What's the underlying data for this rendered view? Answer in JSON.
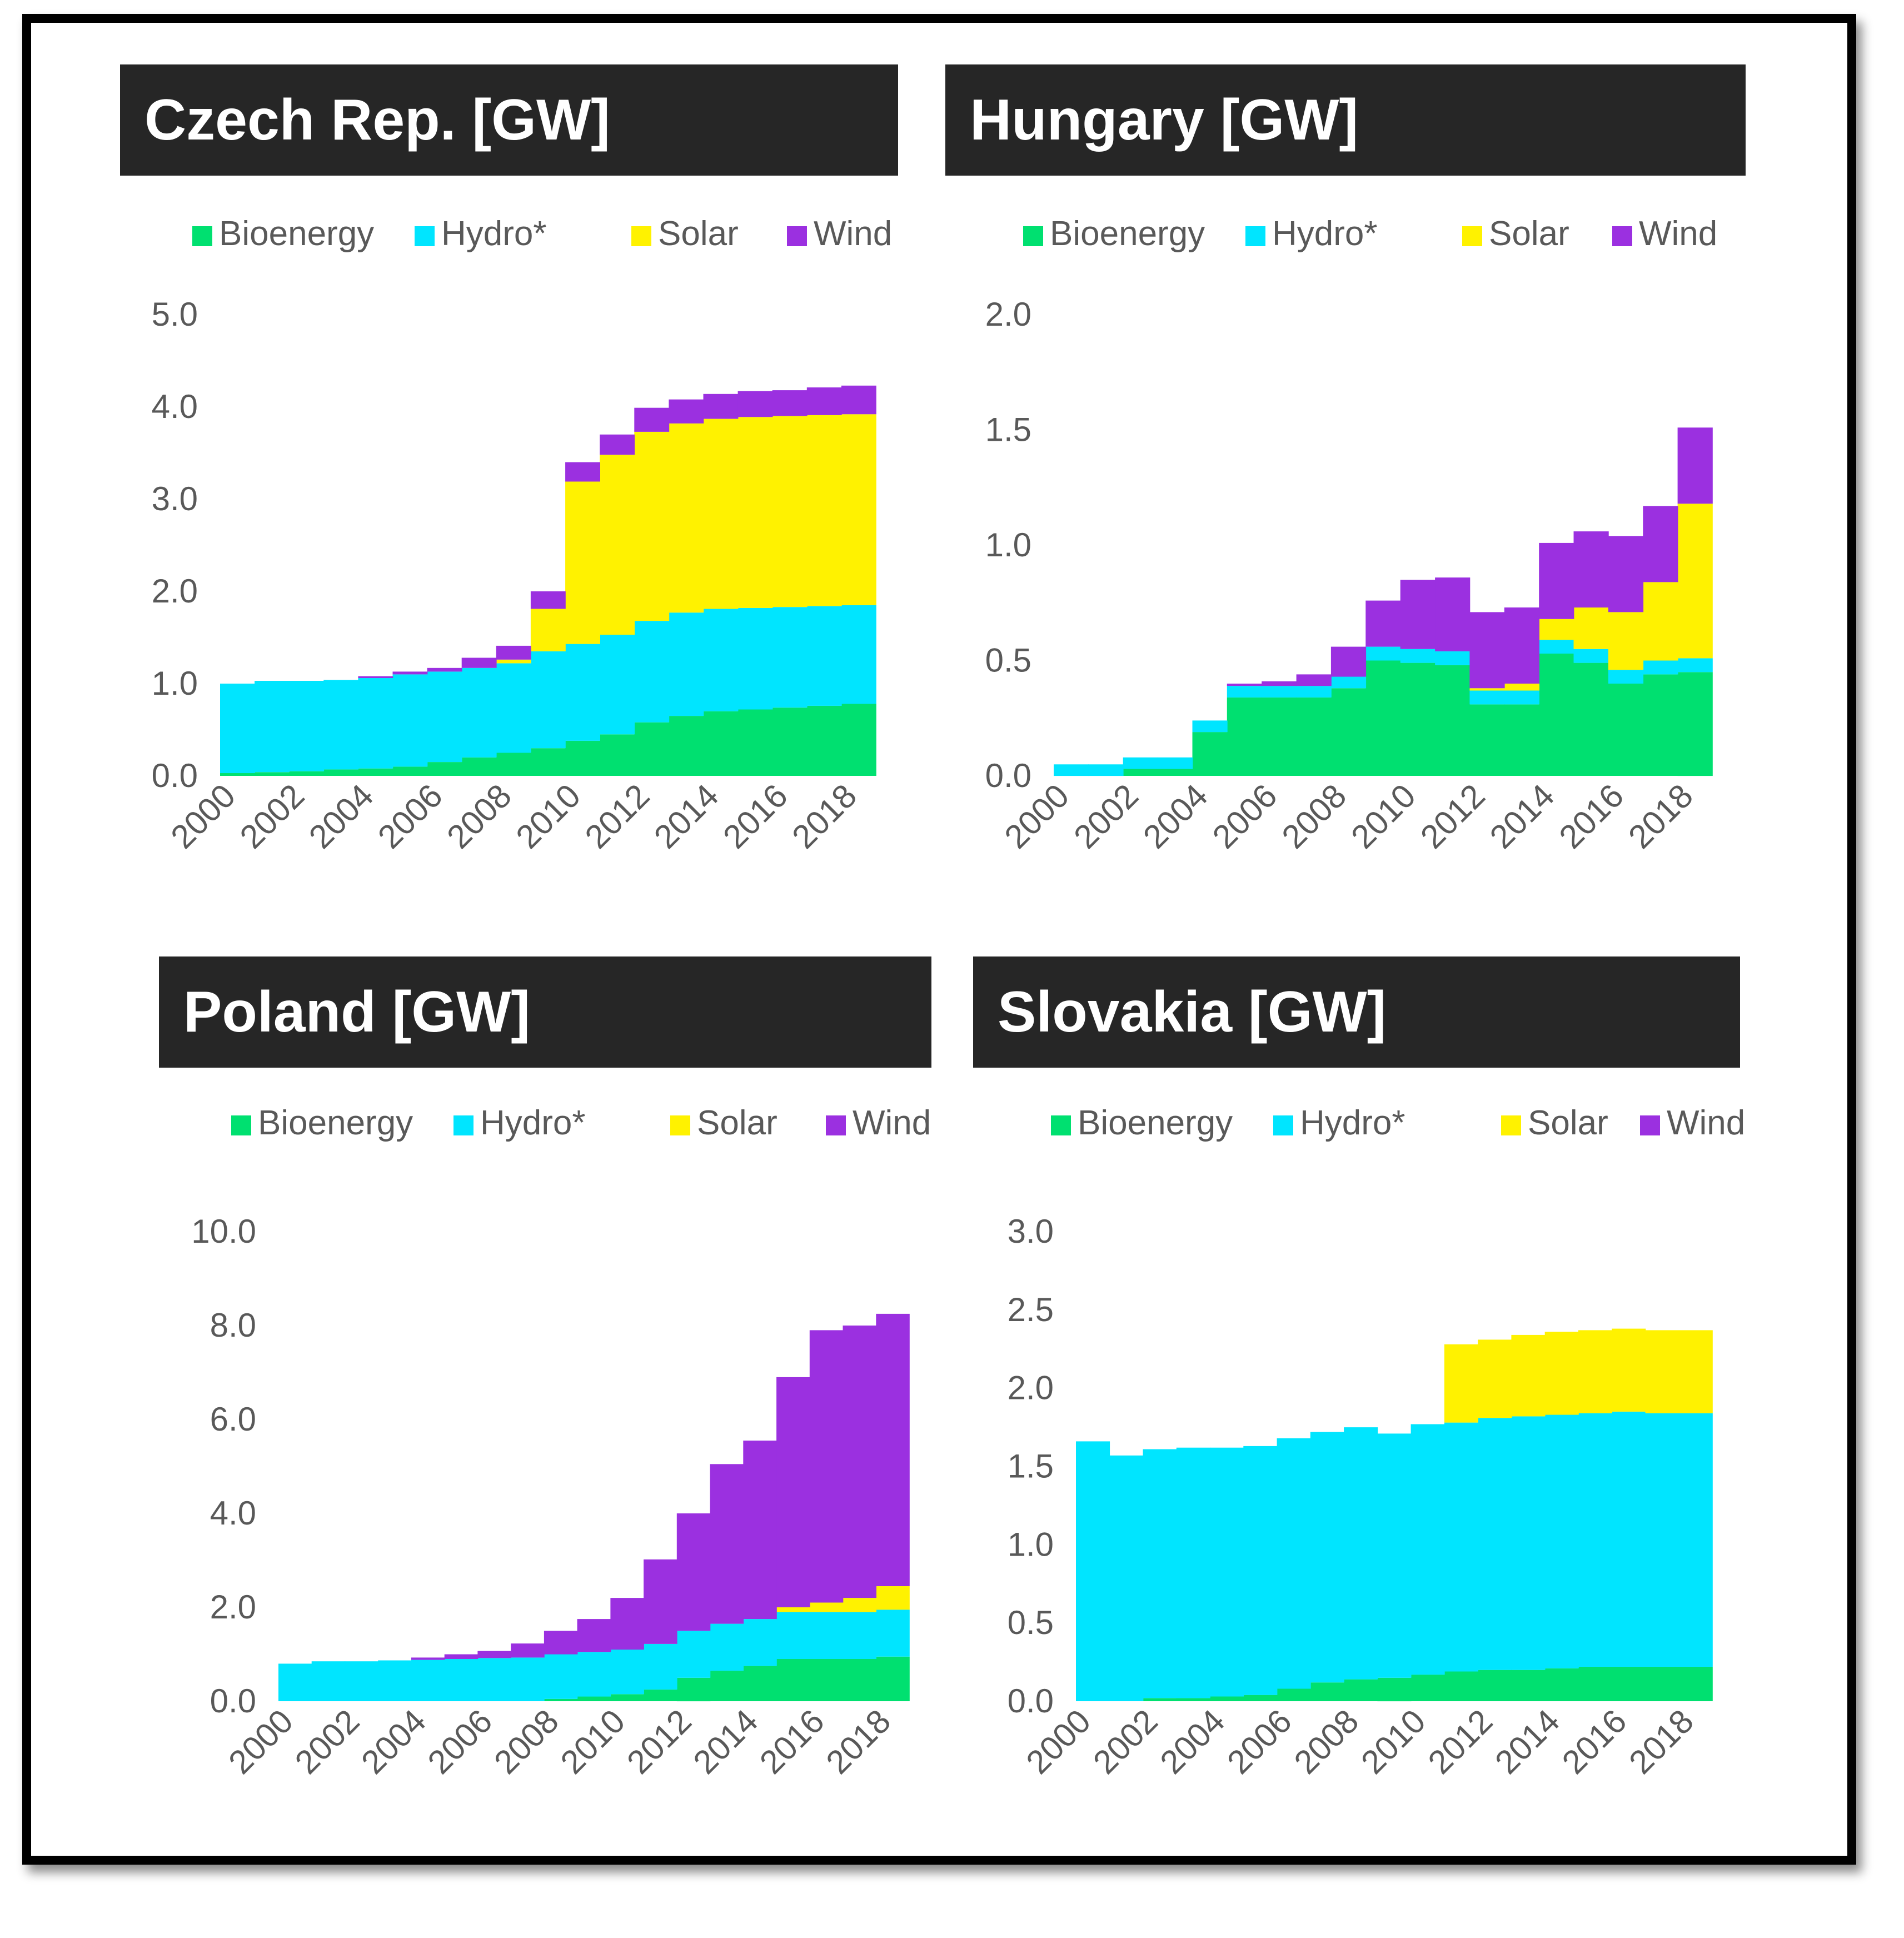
{
  "colors": {
    "Bioenergy": "#00E070",
    "Hydro*": "#00E5FF",
    "Solar": "#FFF200",
    "Wind": "#9B30E0",
    "title_bg": "#262626",
    "axis_text": "#595959"
  },
  "chart_data": [
    {
      "type": "area",
      "title": "Czech Rep. [GW]",
      "legend": [
        "Bioenergy",
        "Hydro*",
        "Solar",
        "Wind"
      ],
      "legend_position": "top",
      "categories": [
        "2000",
        "2001",
        "2002",
        "2003",
        "2004",
        "2005",
        "2006",
        "2007",
        "2008",
        "2009",
        "2010",
        "2011",
        "2012",
        "2013",
        "2014",
        "2015",
        "2016",
        "2017",
        "2018"
      ],
      "xticks": [
        "2000",
        "2002",
        "2004",
        "2006",
        "2008",
        "2010",
        "2012",
        "2014",
        "2016",
        "2018"
      ],
      "ylim": [
        0,
        5
      ],
      "yticks": [
        "0.0",
        "1.0",
        "2.0",
        "3.0",
        "4.0",
        "5.0"
      ],
      "series": [
        {
          "name": "Bioenergy",
          "values": [
            0.03,
            0.04,
            0.05,
            0.07,
            0.08,
            0.1,
            0.15,
            0.2,
            0.25,
            0.3,
            0.38,
            0.45,
            0.58,
            0.65,
            0.7,
            0.72,
            0.74,
            0.76,
            0.78
          ]
        },
        {
          "name": "Hydro*",
          "values": [
            0.97,
            0.99,
            0.98,
            0.97,
            0.98,
            1.0,
            0.98,
            0.97,
            0.97,
            1.05,
            1.05,
            1.08,
            1.1,
            1.12,
            1.11,
            1.1,
            1.09,
            1.08,
            1.07
          ]
        },
        {
          "name": "Solar",
          "values": [
            0.0,
            0.0,
            0.0,
            0.0,
            0.0,
            0.0,
            0.0,
            0.0,
            0.04,
            0.46,
            1.76,
            1.95,
            2.05,
            2.05,
            2.06,
            2.07,
            2.07,
            2.07,
            2.07
          ]
        },
        {
          "name": "Wind",
          "values": [
            0.0,
            0.0,
            0.0,
            0.0,
            0.02,
            0.03,
            0.04,
            0.11,
            0.15,
            0.19,
            0.21,
            0.22,
            0.26,
            0.26,
            0.27,
            0.28,
            0.28,
            0.3,
            0.31
          ]
        }
      ]
    },
    {
      "type": "area",
      "title": "Hungary [GW]",
      "legend": [
        "Bioenergy",
        "Hydro*",
        "Solar",
        "Wind"
      ],
      "legend_position": "top",
      "categories": [
        "2000",
        "2001",
        "2002",
        "2003",
        "2004",
        "2005",
        "2006",
        "2007",
        "2008",
        "2009",
        "2010",
        "2011",
        "2012",
        "2013",
        "2014",
        "2015",
        "2016",
        "2017",
        "2018"
      ],
      "xticks": [
        "2000",
        "2002",
        "2004",
        "2006",
        "2008",
        "2010",
        "2012",
        "2014",
        "2016",
        "2018"
      ],
      "ylim": [
        0,
        2
      ],
      "yticks": [
        "0.0",
        "0.5",
        "1.0",
        "1.5",
        "2.0"
      ],
      "series": [
        {
          "name": "Bioenergy",
          "values": [
            0.0,
            0.0,
            0.03,
            0.03,
            0.19,
            0.34,
            0.34,
            0.34,
            0.38,
            0.5,
            0.49,
            0.48,
            0.31,
            0.31,
            0.53,
            0.49,
            0.4,
            0.44,
            0.45
          ]
        },
        {
          "name": "Hydro*",
          "values": [
            0.05,
            0.05,
            0.05,
            0.05,
            0.05,
            0.05,
            0.05,
            0.05,
            0.05,
            0.06,
            0.06,
            0.06,
            0.06,
            0.06,
            0.06,
            0.06,
            0.06,
            0.06,
            0.06
          ]
        },
        {
          "name": "Solar",
          "values": [
            0.0,
            0.0,
            0.0,
            0.0,
            0.0,
            0.0,
            0.0,
            0.0,
            0.0,
            0.0,
            0.0,
            0.0,
            0.01,
            0.03,
            0.09,
            0.18,
            0.25,
            0.34,
            0.67
          ]
        },
        {
          "name": "Wind",
          "values": [
            0.0,
            0.0,
            0.0,
            0.0,
            0.0,
            0.01,
            0.02,
            0.05,
            0.13,
            0.2,
            0.3,
            0.32,
            0.33,
            0.33,
            0.33,
            0.33,
            0.33,
            0.33,
            0.33
          ]
        }
      ]
    },
    {
      "type": "area",
      "title": "Poland [GW]",
      "legend": [
        "Bioenergy",
        "Hydro*",
        "Solar",
        "Wind"
      ],
      "legend_position": "top",
      "categories": [
        "2000",
        "2001",
        "2002",
        "2003",
        "2004",
        "2005",
        "2006",
        "2007",
        "2008",
        "2009",
        "2010",
        "2011",
        "2012",
        "2013",
        "2014",
        "2015",
        "2016",
        "2017",
        "2018"
      ],
      "xticks": [
        "2000",
        "2002",
        "2004",
        "2006",
        "2008",
        "2010",
        "2012",
        "2014",
        "2016",
        "2018"
      ],
      "ylim": [
        0,
        10
      ],
      "yticks": [
        "0.0",
        "2.0",
        "4.0",
        "6.0",
        "8.0",
        "10.0"
      ],
      "series": [
        {
          "name": "Bioenergy",
          "values": [
            0.0,
            0.0,
            0.0,
            0.0,
            0.0,
            0.0,
            0.0,
            0.0,
            0.05,
            0.1,
            0.15,
            0.25,
            0.5,
            0.65,
            0.75,
            0.9,
            0.9,
            0.9,
            0.95
          ]
        },
        {
          "name": "Hydro*",
          "values": [
            0.8,
            0.85,
            0.85,
            0.87,
            0.88,
            0.9,
            0.92,
            0.93,
            0.95,
            0.95,
            0.95,
            0.97,
            1.0,
            1.0,
            1.0,
            1.0,
            1.0,
            1.0,
            1.0
          ]
        },
        {
          "name": "Solar",
          "values": [
            0.0,
            0.0,
            0.0,
            0.0,
            0.0,
            0.0,
            0.0,
            0.0,
            0.0,
            0.0,
            0.0,
            0.0,
            0.0,
            0.0,
            0.0,
            0.1,
            0.2,
            0.3,
            0.5
          ]
        },
        {
          "name": "Wind",
          "values": [
            0.0,
            0.0,
            0.0,
            0.0,
            0.05,
            0.1,
            0.15,
            0.3,
            0.5,
            0.7,
            1.1,
            1.8,
            2.5,
            3.4,
            3.8,
            4.9,
            5.8,
            5.8,
            5.8
          ]
        }
      ]
    },
    {
      "type": "area",
      "title": "Slovakia [GW]",
      "legend": [
        "Bioenergy",
        "Hydro*",
        "Solar",
        "Wind"
      ],
      "legend_position": "top",
      "categories": [
        "2000",
        "2001",
        "2002",
        "2003",
        "2004",
        "2005",
        "2006",
        "2007",
        "2008",
        "2009",
        "2010",
        "2011",
        "2012",
        "2013",
        "2014",
        "2015",
        "2016",
        "2017",
        "2018"
      ],
      "xticks": [
        "2000",
        "2002",
        "2004",
        "2006",
        "2008",
        "2010",
        "2012",
        "2014",
        "2016",
        "2018"
      ],
      "ylim": [
        0,
        3
      ],
      "yticks": [
        "0.0",
        "0.5",
        "1.0",
        "1.5",
        "2.0",
        "2.5",
        "3.0"
      ],
      "series": [
        {
          "name": "Bioenergy",
          "values": [
            0.0,
            0.0,
            0.02,
            0.02,
            0.03,
            0.04,
            0.08,
            0.12,
            0.14,
            0.15,
            0.17,
            0.19,
            0.2,
            0.2,
            0.21,
            0.22,
            0.22,
            0.22,
            0.22
          ]
        },
        {
          "name": "Hydro*",
          "values": [
            1.66,
            1.57,
            1.59,
            1.6,
            1.59,
            1.59,
            1.6,
            1.6,
            1.61,
            1.56,
            1.6,
            1.59,
            1.61,
            1.62,
            1.62,
            1.62,
            1.63,
            1.62,
            1.62
          ]
        },
        {
          "name": "Solar",
          "values": [
            0.0,
            0.0,
            0.0,
            0.0,
            0.0,
            0.0,
            0.0,
            0.0,
            0.0,
            0.0,
            0.0,
            0.5,
            0.5,
            0.52,
            0.53,
            0.53,
            0.53,
            0.53,
            0.53
          ]
        },
        {
          "name": "Wind",
          "values": [
            0.0,
            0.0,
            0.0,
            0.0,
            0.0,
            0.0,
            0.0,
            0.0,
            0.0,
            0.0,
            0.0,
            0.0,
            0.0,
            0.0,
            0.0,
            0.0,
            0.0,
            0.0,
            0.0
          ]
        }
      ]
    }
  ]
}
